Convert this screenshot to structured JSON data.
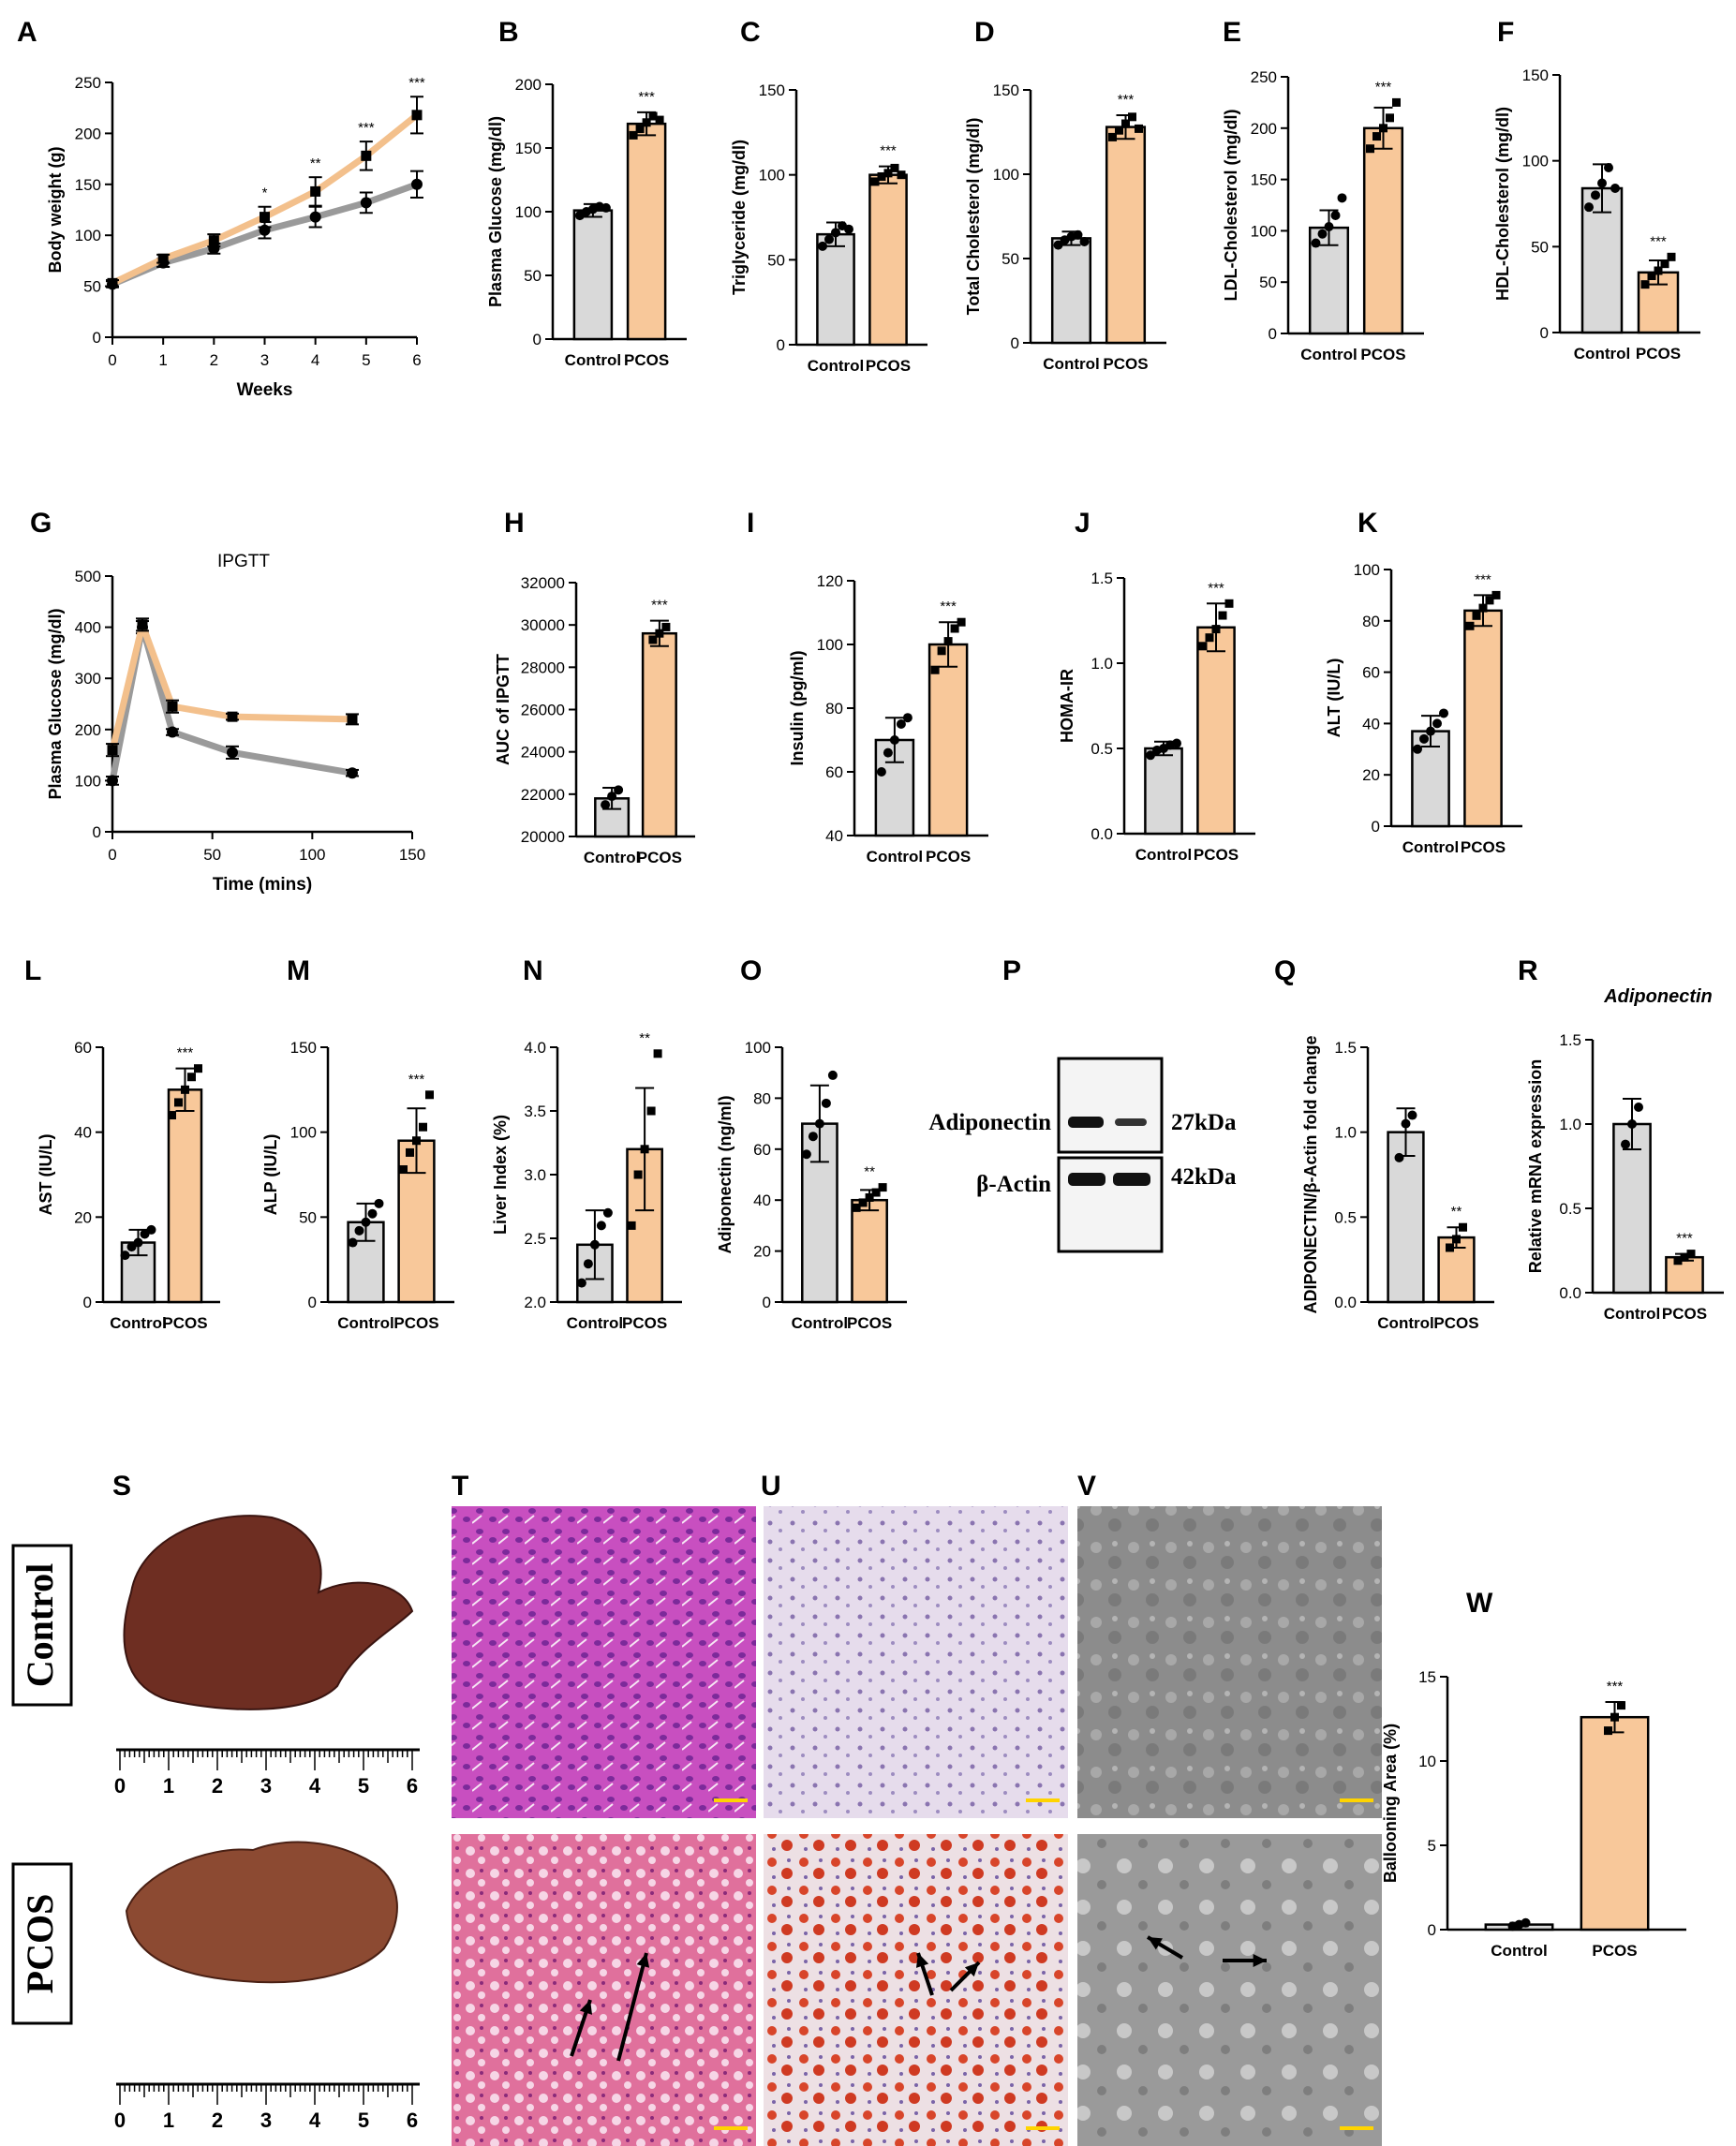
{
  "colors": {
    "control": "#d9d9d9",
    "pcos": "#f8c89a",
    "control_line": "#9a9a9a",
    "pcos_line": "#f3c08c",
    "axis": "#000000"
  },
  "photos": {
    "row_labels": [
      "Control",
      "PCOS"
    ],
    "ruler_ticks": [
      "0",
      "1",
      "2",
      "3",
      "4",
      "5",
      "6"
    ],
    "stain_colors": {
      "he_control": "#c84fc0",
      "oil_control": "#d8cde0",
      "tem_control": "#8a8a8a",
      "he_pcos": "#e0709c",
      "oil_pcos": "#e8c8c8",
      "tem_pcos": "#9a9a9a"
    }
  },
  "western": {
    "label": "P",
    "proteins": [
      "Adiponectin",
      "β-Actin"
    ],
    "weights": [
      "27kDa",
      "42kDa"
    ]
  },
  "chart_data": [
    {
      "id": "A",
      "label": "A",
      "type": "line",
      "title": "",
      "xlabel": "Weeks",
      "ylabel": "Body weight (g)",
      "x": [
        0,
        1,
        2,
        3,
        4,
        5,
        6
      ],
      "xlim": [
        0,
        6
      ],
      "ylim": [
        0,
        250
      ],
      "yticks": [
        0,
        50,
        100,
        150,
        200,
        250
      ],
      "series": [
        {
          "group": "control",
          "values": [
            52,
            73,
            87,
            105,
            118,
            132,
            150
          ],
          "errors": [
            3,
            4,
            5,
            8,
            10,
            10,
            13
          ]
        },
        {
          "group": "pcos",
          "values": [
            53,
            77,
            95,
            118,
            143,
            178,
            218
          ],
          "errors": [
            3,
            4,
            6,
            10,
            14,
            14,
            18
          ]
        }
      ],
      "annotations": [
        {
          "x": 3,
          "text": "*"
        },
        {
          "x": 4,
          "text": "**"
        },
        {
          "x": 5,
          "text": "***"
        },
        {
          "x": 6,
          "text": "***"
        }
      ]
    },
    {
      "id": "B",
      "label": "B",
      "type": "bar",
      "ylabel": "Plasma Glucose (mg/dl)",
      "categories": [
        "Control",
        "PCOS"
      ],
      "ylim": [
        0,
        200
      ],
      "yticks": [
        0,
        50,
        100,
        150,
        200
      ],
      "values": [
        101,
        169
      ],
      "errors": [
        5,
        9
      ],
      "points": [
        [
          97,
          100,
          102,
          104,
          103
        ],
        [
          160,
          165,
          170,
          175,
          172
        ]
      ],
      "sig": "***"
    },
    {
      "id": "C",
      "label": "C",
      "type": "bar",
      "ylabel": "Triglyceride (mg/dl)",
      "categories": [
        "Control",
        "PCOS"
      ],
      "ylim": [
        0,
        150
      ],
      "yticks": [
        0,
        50,
        100,
        150
      ],
      "values": [
        65,
        100
      ],
      "errors": [
        7,
        5
      ],
      "points": [
        [
          58,
          62,
          66,
          70,
          68
        ],
        [
          96,
          99,
          101,
          104,
          100
        ]
      ],
      "sig": "***"
    },
    {
      "id": "D",
      "label": "D",
      "type": "bar",
      "ylabel": "Total Cholesterol (mg/dl)",
      "categories": [
        "Control",
        "PCOS"
      ],
      "ylim": [
        0,
        150
      ],
      "yticks": [
        0,
        50,
        100,
        150
      ],
      "values": [
        62,
        128
      ],
      "errors": [
        4,
        7
      ],
      "points": [
        [
          58,
          61,
          63,
          64,
          60
        ],
        [
          122,
          126,
          130,
          134,
          127
        ]
      ],
      "sig": "***"
    },
    {
      "id": "E",
      "label": "E",
      "type": "bar",
      "ylabel": "LDL-Cholesterol (mg/dl)",
      "categories": [
        "Control",
        "PCOS"
      ],
      "ylim": [
        0,
        250
      ],
      "yticks": [
        0,
        50,
        100,
        150,
        200,
        250
      ],
      "values": [
        103,
        200
      ],
      "errors": [
        17,
        20
      ],
      "points": [
        [
          88,
          97,
          104,
          115,
          132
        ],
        [
          180,
          192,
          200,
          210,
          225
        ]
      ],
      "sig": "***"
    },
    {
      "id": "F",
      "label": "F",
      "type": "bar",
      "ylabel": "HDL-Cholesterol (mg/dl)",
      "categories": [
        "Control",
        "PCOS"
      ],
      "ylim": [
        0,
        150
      ],
      "yticks": [
        0,
        50,
        100,
        150
      ],
      "values": [
        84,
        35
      ],
      "errors": [
        14,
        7
      ],
      "points": [
        [
          73,
          80,
          87,
          96,
          84
        ],
        [
          28,
          33,
          36,
          40,
          44
        ]
      ],
      "sig": "***"
    },
    {
      "id": "G",
      "label": "G",
      "type": "line",
      "title": "IPGTT",
      "xlabel": "Time (mins)",
      "ylabel": "Plasma Glucose (mg/dl)",
      "x": [
        0,
        15,
        30,
        60,
        120
      ],
      "xlim": [
        0,
        150
      ],
      "xticks": [
        0,
        50,
        100,
        150
      ],
      "ylim": [
        0,
        500
      ],
      "yticks": [
        0,
        100,
        200,
        300,
        400,
        500
      ],
      "series": [
        {
          "group": "control",
          "values": [
            100,
            400,
            195,
            155,
            115
          ],
          "errors": [
            8,
            12,
            6,
            12,
            6
          ]
        },
        {
          "group": "pcos",
          "values": [
            160,
            405,
            245,
            225,
            220
          ],
          "errors": [
            12,
            12,
            12,
            6,
            10
          ]
        }
      ]
    },
    {
      "id": "H",
      "label": "H",
      "type": "bar",
      "ylabel": "AUC of IPGTT",
      "categories": [
        "Control",
        "PCOS"
      ],
      "ylim": [
        20000,
        32000
      ],
      "yticks": [
        20000,
        22000,
        24000,
        26000,
        28000,
        30000,
        32000
      ],
      "values": [
        21800,
        29600
      ],
      "errors": [
        500,
        600
      ],
      "points": [
        [
          21500,
          21900,
          22200
        ],
        [
          29300,
          29600,
          29900
        ]
      ],
      "sig": "***"
    },
    {
      "id": "I",
      "label": "I",
      "type": "bar",
      "ylabel": "Insulin (pg/ml)",
      "categories": [
        "Control",
        "PCOS"
      ],
      "ylim": [
        40,
        120
      ],
      "yticks": [
        40,
        60,
        80,
        100,
        120
      ],
      "values": [
        70,
        100
      ],
      "errors": [
        7,
        7
      ],
      "points": [
        [
          60,
          66,
          70,
          75,
          77
        ],
        [
          92,
          98,
          101,
          105,
          107
        ]
      ],
      "sig": "***"
    },
    {
      "id": "J",
      "label": "J",
      "type": "bar",
      "ylabel": "HOMA-IR",
      "categories": [
        "Control",
        "PCOS"
      ],
      "ylim": [
        0,
        1.5
      ],
      "yticks": [
        0.0,
        0.5,
        1.0,
        1.5
      ],
      "values": [
        0.5,
        1.21
      ],
      "errors": [
        0.04,
        0.14
      ],
      "points": [
        [
          0.46,
          0.49,
          0.5,
          0.52,
          0.53
        ],
        [
          1.1,
          1.15,
          1.2,
          1.28,
          1.35
        ]
      ],
      "sig": "***"
    },
    {
      "id": "K",
      "label": "K",
      "type": "bar",
      "ylabel": "ALT (IU/L)",
      "categories": [
        "Control",
        "PCOS"
      ],
      "ylim": [
        0,
        100
      ],
      "yticks": [
        0,
        20,
        40,
        60,
        80,
        100
      ],
      "values": [
        37,
        84
      ],
      "errors": [
        6,
        6
      ],
      "points": [
        [
          30,
          34,
          37,
          40,
          44
        ],
        [
          78,
          82,
          85,
          88,
          90
        ]
      ],
      "sig": "***"
    },
    {
      "id": "L",
      "label": "L",
      "type": "bar",
      "ylabel": "AST (IU/L)",
      "categories": [
        "Control",
        "PCOS"
      ],
      "ylim": [
        0,
        60
      ],
      "yticks": [
        0,
        20,
        40,
        60
      ],
      "values": [
        14,
        50
      ],
      "errors": [
        3,
        5
      ],
      "points": [
        [
          11,
          13,
          14,
          16,
          17
        ],
        [
          44,
          47,
          50,
          53,
          55
        ]
      ],
      "sig": "***"
    },
    {
      "id": "M",
      "label": "M",
      "type": "bar",
      "ylabel": "ALP (IU/L)",
      "categories": [
        "Control",
        "PCOS"
      ],
      "ylim": [
        0,
        150
      ],
      "yticks": [
        0,
        50,
        100,
        150
      ],
      "values": [
        47,
        95
      ],
      "errors": [
        11,
        19
      ],
      "points": [
        [
          35,
          42,
          47,
          52,
          58
        ],
        [
          78,
          88,
          95,
          103,
          122
        ]
      ],
      "sig": "***"
    },
    {
      "id": "N",
      "label": "N",
      "type": "bar",
      "ylabel": "Liver Index (%)",
      "categories": [
        "Control",
        "PCOS"
      ],
      "ylim": [
        2.0,
        4.0
      ],
      "yticks": [
        2.0,
        2.5,
        3.0,
        3.5,
        4.0
      ],
      "values": [
        2.45,
        3.2
      ],
      "errors": [
        0.27,
        0.48
      ],
      "points": [
        [
          2.15,
          2.3,
          2.45,
          2.6,
          2.7
        ],
        [
          2.6,
          3.0,
          3.2,
          3.5,
          3.95
        ]
      ],
      "sig": "**"
    },
    {
      "id": "O",
      "label": "O",
      "type": "bar",
      "ylabel": "Adiponectin (ng/ml)",
      "categories": [
        "Control",
        "PCOS"
      ],
      "ylim": [
        0,
        100
      ],
      "yticks": [
        0,
        20,
        40,
        60,
        80,
        100
      ],
      "values": [
        70,
        40
      ],
      "errors": [
        15,
        4
      ],
      "points": [
        [
          58,
          65,
          70,
          78,
          89
        ],
        [
          37,
          39,
          41,
          43,
          45
        ]
      ],
      "sig": "**"
    },
    {
      "id": "Q",
      "label": "Q",
      "type": "bar",
      "ylabel": "ADIPONECTIN/β-Actin fold change",
      "categories": [
        "Control",
        "PCOS"
      ],
      "ylim": [
        0,
        1.5
      ],
      "yticks": [
        0.0,
        0.5,
        1.0,
        1.5
      ],
      "values": [
        1.0,
        0.38
      ],
      "errors": [
        0.14,
        0.06
      ],
      "points": [
        [
          0.85,
          1.05,
          1.1
        ],
        [
          0.32,
          0.37,
          0.44
        ]
      ],
      "sig": "**"
    },
    {
      "id": "R",
      "label": "R",
      "type": "bar",
      "title": "Adiponectin",
      "ylabel": "Relative mRNA expression",
      "categories": [
        "Control",
        "PCOS"
      ],
      "ylim": [
        0,
        1.5
      ],
      "yticks": [
        0.0,
        0.5,
        1.0,
        1.5
      ],
      "values": [
        1.0,
        0.21
      ],
      "errors": [
        0.15,
        0.02
      ],
      "points": [
        [
          0.88,
          1.0,
          1.1
        ],
        [
          0.19,
          0.21,
          0.23
        ]
      ],
      "sig": "***"
    },
    {
      "id": "W",
      "label": "W",
      "type": "bar",
      "ylabel": "Ballooning Area (%)",
      "categories": [
        "Control",
        "PCOS"
      ],
      "ylim": [
        0,
        15
      ],
      "yticks": [
        0,
        5,
        10,
        15
      ],
      "values": [
        0.3,
        12.6
      ],
      "errors": [
        0.1,
        0.9
      ],
      "points": [
        [
          0.2,
          0.3,
          0.4
        ],
        [
          11.8,
          12.6,
          13.3
        ]
      ],
      "sig": "***"
    }
  ]
}
